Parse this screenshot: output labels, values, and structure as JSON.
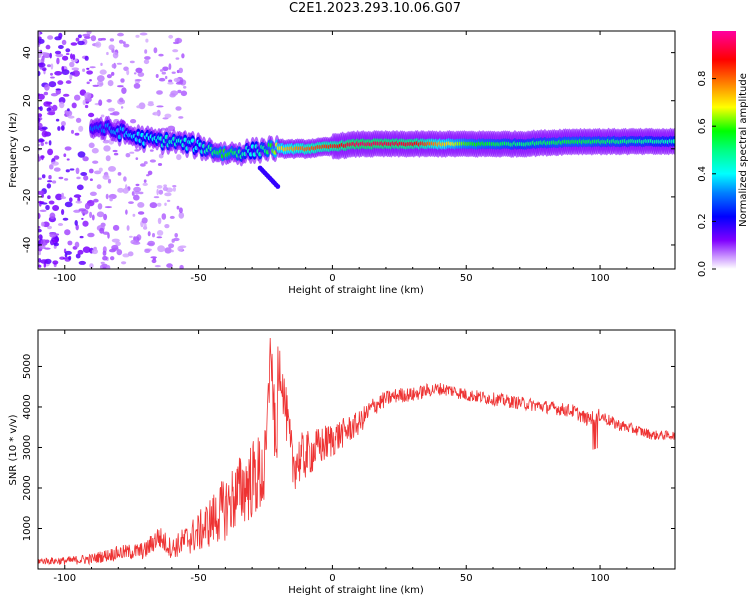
{
  "figure": {
    "title": "C2E1.2023.293.10.06.G07"
  },
  "chart_data": [
    {
      "type": "heatmap",
      "title": "",
      "xlabel": "Height of straight line (km)",
      "ylabel": "Frequency (Hz)",
      "xlim": [
        -110,
        128
      ],
      "ylim": [
        -50,
        49
      ],
      "xticks": [
        -100,
        -50,
        0,
        50,
        100
      ],
      "yticks": [
        -40,
        -20,
        0,
        20,
        40
      ],
      "colorbar": {
        "label": "Normalized spectral amplitude",
        "range": [
          0,
          1
        ],
        "ticks": [
          0.0,
          0.2,
          0.4,
          0.6,
          0.8
        ],
        "colormap": "rainbow (white/purple low → red/magenta high)"
      },
      "ridge": {
        "description": "frequency of dominant spectral line vs height",
        "x": [
          -88,
          -80,
          -70,
          -60,
          -50,
          -40,
          -30,
          -25,
          -20,
          -10,
          0,
          10,
          30,
          50,
          70,
          90,
          110,
          128
        ],
        "y": [
          9,
          7,
          4,
          3,
          1,
          -2,
          -1,
          0,
          0,
          0,
          1,
          2,
          2,
          2,
          2,
          3,
          3,
          3
        ],
        "peak_amplitude": [
          0.3,
          0.35,
          0.4,
          0.45,
          0.4,
          0.6,
          0.4,
          0.5,
          0.7,
          0.8,
          0.85,
          0.95,
          0.9,
          0.6,
          0.5,
          0.55,
          0.5,
          0.45
        ]
      },
      "grid": false
    },
    {
      "type": "line",
      "title": "",
      "xlabel": "Height of straight line (km)",
      "ylabel": "SNR (10 * v/v)",
      "xlim": [
        -110,
        128
      ],
      "ylim": [
        0,
        5900
      ],
      "xticks": [
        -100,
        -50,
        0,
        50,
        100
      ],
      "yticks": [
        1000,
        2000,
        3000,
        4000,
        5000
      ],
      "series": [
        {
          "color": "#ee3333",
          "x": [
            -110,
            -100,
            -90,
            -80,
            -70,
            -65,
            -60,
            -50,
            -40,
            -35,
            -30,
            -25,
            -23,
            -21,
            -20,
            -15,
            -10,
            -5,
            0,
            5,
            10,
            15,
            20,
            25,
            30,
            35,
            40,
            45,
            50,
            55,
            60,
            70,
            80,
            90,
            95,
            100,
            105,
            110,
            115,
            120,
            128
          ],
          "y": [
            200,
            200,
            250,
            400,
            450,
            800,
            500,
            900,
            1500,
            1900,
            2200,
            2400,
            5500,
            2600,
            5300,
            2600,
            2800,
            3000,
            3200,
            3400,
            3600,
            4000,
            4200,
            4300,
            4300,
            4400,
            4450,
            4400,
            4300,
            4250,
            4200,
            4100,
            4000,
            3900,
            3700,
            3800,
            3600,
            3500,
            3400,
            3300,
            3300
          ],
          "noise_amplitude": [
            80,
            100,
            130,
            180,
            220,
            300,
            250,
            500,
            800,
            900,
            1000,
            1100,
            600,
            1000,
            600,
            700,
            600,
            500,
            450,
            350,
            300,
            250,
            200,
            180,
            180,
            170,
            160,
            160,
            160,
            160,
            160,
            160,
            160,
            170,
            170,
            160,
            150,
            140,
            130,
            120,
            110
          ]
        }
      ],
      "grid": false
    }
  ]
}
